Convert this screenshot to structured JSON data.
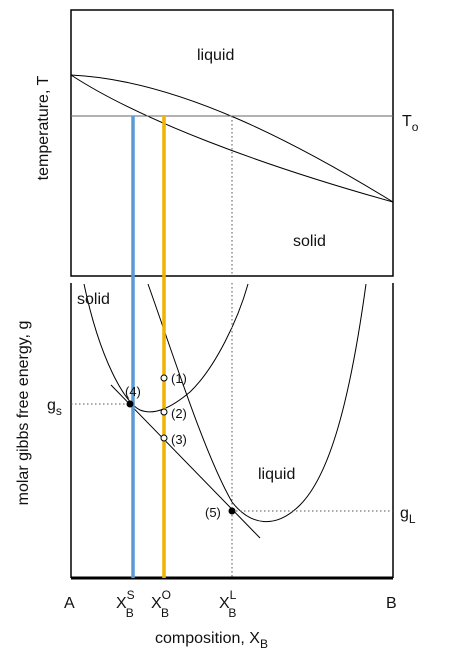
{
  "upper_panel": {
    "y_axis_label": "temperature, T",
    "region_liquid": "liquid",
    "region_solid": "solid",
    "isotherm_label": {
      "main": "T",
      "sub": "o"
    }
  },
  "lower_panel": {
    "y_axis_label": "molar gibbs free energy, g",
    "curve_solid_label": "solid",
    "curve_liquid_label": "liquid",
    "gs_label": {
      "main": "g",
      "sub": "s"
    },
    "gl_label": {
      "main": "g",
      "sub": "L"
    },
    "points": [
      "(1)",
      "(2)",
      "(3)",
      "(4)",
      "(5)"
    ]
  },
  "x_axis": {
    "label": {
      "main": "composition, X",
      "sub": "B"
    },
    "left_end": "A",
    "right_end": "B",
    "ticks": [
      {
        "main": "X",
        "sup": "S",
        "sub": "B"
      },
      {
        "main": "X",
        "sup": "O",
        "sub": "B"
      },
      {
        "main": "X",
        "sup": "L",
        "sub": "B"
      }
    ]
  },
  "colors": {
    "xs_line": "#5b9bd5",
    "xo_line": "#f0b400",
    "axes": "#000000"
  }
}
